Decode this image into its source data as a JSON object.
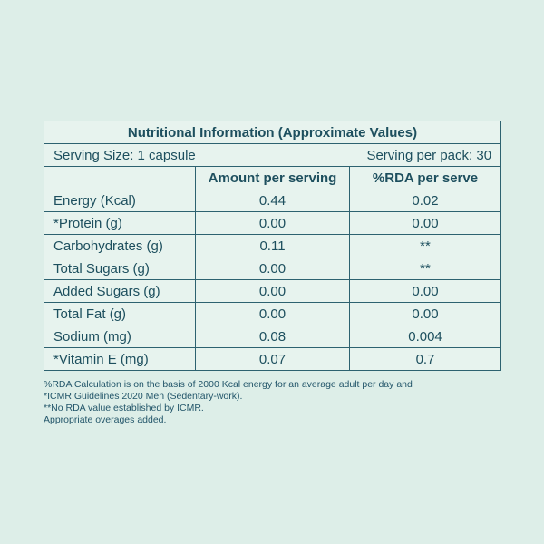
{
  "colors": {
    "page_background": "#ddeee8",
    "cell_background": "#e7f3ee",
    "border": "#2d6270",
    "text": "#1d4f5e"
  },
  "table": {
    "title": "Nutritional Information (Approximate Values)",
    "serving_size": "Serving Size: 1 capsule",
    "serving_per_pack": "Serving per pack: 30",
    "columns": {
      "amount": "Amount per serving",
      "rda": "%RDA per serve"
    },
    "rows": [
      {
        "label": "Energy (Kcal)",
        "amount": "0.44",
        "rda": "0.02"
      },
      {
        "label": "*Protein (g)",
        "amount": "0.00",
        "rda": "0.00"
      },
      {
        "label": "Carbohydrates (g)",
        "amount": "0.11",
        "rda": "**"
      },
      {
        "label": "Total Sugars (g)",
        "amount": "0.00",
        "rda": "**"
      },
      {
        "label": "Added Sugars (g)",
        "amount": "0.00",
        "rda": "0.00"
      },
      {
        "label": "Total Fat (g)",
        "amount": "0.00",
        "rda": "0.00"
      },
      {
        "label": "Sodium (mg)",
        "amount": "0.08",
        "rda": "0.004"
      },
      {
        "label": "*Vitamin E (mg)",
        "amount": "0.07",
        "rda": "0.7"
      }
    ]
  },
  "footnotes": [
    "%RDA Calculation is on the basis of 2000 Kcal energy for an average adult per day and",
    "*ICMR Guidelines 2020 Men (Sedentary-work).",
    "**No RDA value established by ICMR.",
    "Appropriate overages added."
  ]
}
